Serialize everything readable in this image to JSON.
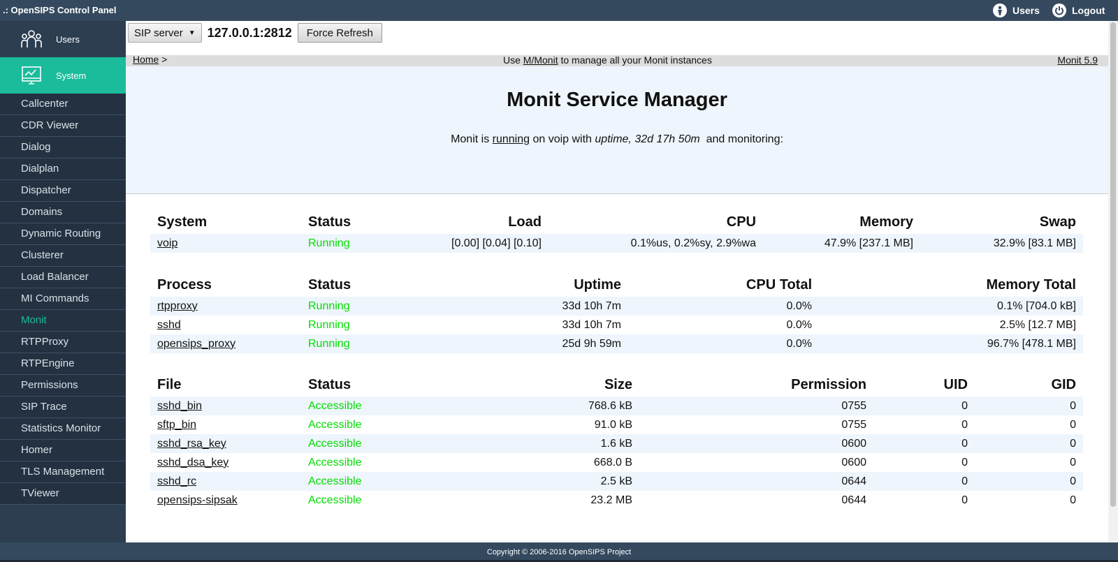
{
  "app": {
    "title": ".: OpenSIPS Control Panel"
  },
  "topnav": {
    "users": "Users",
    "logout": "Logout"
  },
  "sidebar": {
    "main": [
      {
        "label": "Users"
      },
      {
        "label": "System"
      }
    ],
    "items": [
      {
        "label": "Callcenter"
      },
      {
        "label": "CDR Viewer"
      },
      {
        "label": "Dialog"
      },
      {
        "label": "Dialplan"
      },
      {
        "label": "Dispatcher"
      },
      {
        "label": "Domains"
      },
      {
        "label": "Dynamic Routing"
      },
      {
        "label": "Clusterer"
      },
      {
        "label": "Load Balancer"
      },
      {
        "label": "MI Commands"
      },
      {
        "label": "Monit"
      },
      {
        "label": "RTPProxy"
      },
      {
        "label": "RTPEngine"
      },
      {
        "label": "Permissions"
      },
      {
        "label": "SIP Trace"
      },
      {
        "label": "Statistics Monitor"
      },
      {
        "label": "Homer"
      },
      {
        "label": "TLS Management"
      },
      {
        "label": "TViewer"
      }
    ],
    "active": "Monit"
  },
  "toolbar": {
    "box_select": "SIP server",
    "address": "127.0.0.1:2812",
    "refresh": "Force Refresh"
  },
  "breadcrumb": {
    "home": "Home",
    "separator": ">",
    "msg_pre": "Use ",
    "msg_link": "M/Monit",
    "msg_post": " to manage all your Monit instances",
    "version": "Monit 5.9"
  },
  "header": {
    "title": "Monit Service Manager",
    "p1": "Monit is ",
    "running": "running",
    "p2": " on voip with ",
    "uptime": "uptime, 32d 17h 50m",
    "p3": "  and monitoring:"
  },
  "system_table": {
    "headers": [
      "System",
      "Status",
      "Load",
      "CPU",
      "Memory",
      "Swap"
    ],
    "rows": [
      {
        "name": "voip",
        "status": "Running",
        "load": "[0.00] [0.04] [0.10]",
        "cpu": "0.1%us, 0.2%sy, 2.9%wa",
        "memory": "47.9% [237.1 MB]",
        "swap": "32.9% [83.1 MB]"
      }
    ]
  },
  "process_table": {
    "headers": [
      "Process",
      "Status",
      "Uptime",
      "CPU Total",
      "Memory Total"
    ],
    "rows": [
      {
        "name": "rtpproxy",
        "status": "Running",
        "uptime": "33d 10h 7m",
        "cpu": "0.0%",
        "memory": "0.1% [704.0 kB]"
      },
      {
        "name": "sshd",
        "status": "Running",
        "uptime": "33d 10h 7m",
        "cpu": "0.0%",
        "memory": "2.5% [12.7 MB]"
      },
      {
        "name": "opensips_proxy",
        "status": "Running",
        "uptime": "25d 9h 59m",
        "cpu": "0.0%",
        "memory": "96.7% [478.1 MB]"
      }
    ]
  },
  "file_table": {
    "headers": [
      "File",
      "Status",
      "Size",
      "Permission",
      "UID",
      "GID"
    ],
    "rows": [
      {
        "name": "sshd_bin",
        "status": "Accessible",
        "size": "768.6 kB",
        "perm": "0755",
        "uid": "0",
        "gid": "0"
      },
      {
        "name": "sftp_bin",
        "status": "Accessible",
        "size": "91.0 kB",
        "perm": "0755",
        "uid": "0",
        "gid": "0"
      },
      {
        "name": "sshd_rsa_key",
        "status": "Accessible",
        "size": "1.6 kB",
        "perm": "0600",
        "uid": "0",
        "gid": "0"
      },
      {
        "name": "sshd_dsa_key",
        "status": "Accessible",
        "size": "668.0 B",
        "perm": "0600",
        "uid": "0",
        "gid": "0"
      },
      {
        "name": "sshd_rc",
        "status": "Accessible",
        "size": "2.5 kB",
        "perm": "0644",
        "uid": "0",
        "gid": "0"
      },
      {
        "name": "opensips-sipsak",
        "status": "Accessible",
        "size": "23.2 MB",
        "perm": "0644",
        "uid": "0",
        "gid": "0"
      }
    ]
  },
  "footer": {
    "copyright": "Copyright © 2006-2016 OpenSIPS Project"
  },
  "colors": {
    "sidebar": "#2c3e50",
    "accent": "#1abc9c",
    "topbar": "#34495e",
    "ok": "#00dd00"
  }
}
